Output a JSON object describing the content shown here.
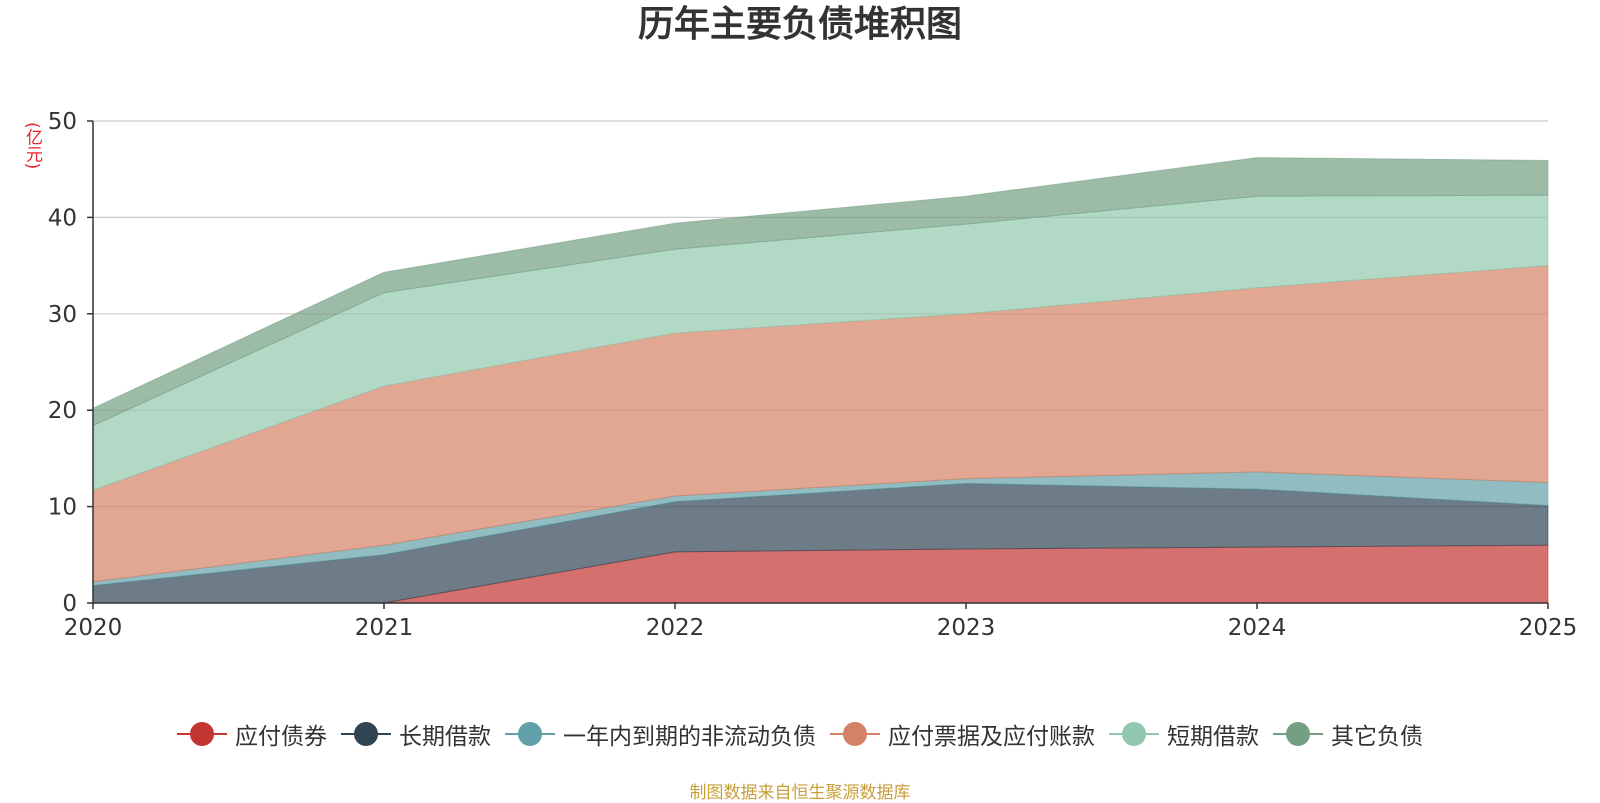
{
  "chart_data": {
    "type": "area",
    "stacked": true,
    "title": "历年主要负债堆积图",
    "ylabel": "(亿元)",
    "xlabel": "",
    "x": [
      "2020",
      "2021",
      "2022",
      "2023",
      "2024",
      "2025"
    ],
    "yticks": [
      "0",
      "10",
      "20",
      "30",
      "40",
      "50"
    ],
    "ylim": [
      0,
      50
    ],
    "grid": true,
    "legend_position": "bottom",
    "series": [
      {
        "name": "应付债券",
        "color": "#c23531",
        "values": [
          0,
          0,
          5.3,
          5.6,
          5.8,
          6.0
        ]
      },
      {
        "name": "长期借款",
        "color": "#2f4554",
        "values": [
          1.8,
          5.0,
          5.2,
          6.8,
          6.0,
          4.1
        ]
      },
      {
        "name": "一年内到期的非流动负债",
        "color": "#61a0a8",
        "values": [
          0.4,
          1.0,
          0.6,
          0.5,
          1.8,
          2.4
        ]
      },
      {
        "name": "应付票据及应付账款",
        "color": "#d48265",
        "values": [
          9.5,
          16.5,
          16.9,
          17.1,
          19.1,
          22.5
        ]
      },
      {
        "name": "短期借款",
        "color": "#91c7ae",
        "values": [
          6.7,
          9.7,
          8.7,
          9.3,
          9.5,
          7.3
        ]
      },
      {
        "name": "其它负债",
        "color": "#749f83",
        "values": [
          1.8,
          2.1,
          2.7,
          2.9,
          4.0,
          3.6
        ]
      }
    ],
    "source_note": "制图数据来自恒生聚源数据库"
  }
}
